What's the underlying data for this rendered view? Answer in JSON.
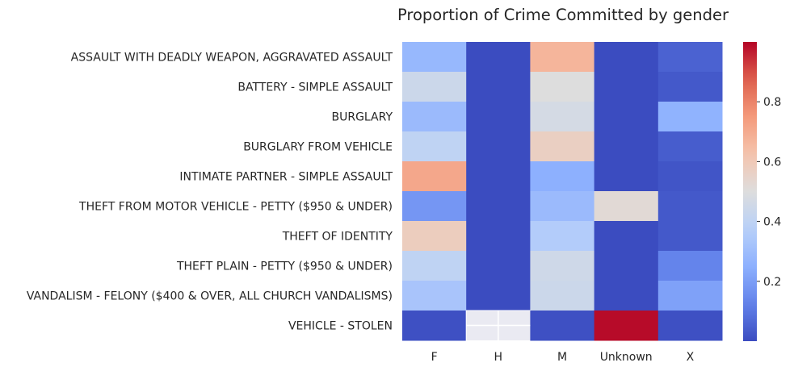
{
  "chart_data": {
    "type": "heatmap",
    "title": "Proportion of Crime Committed by gender",
    "xlabel": "",
    "ylabel": "",
    "x_categories": [
      "F",
      "H",
      "M",
      "Unknown",
      "X"
    ],
    "y_categories": [
      "ASSAULT WITH DEADLY WEAPON, AGGRAVATED ASSAULT",
      "BATTERY - SIMPLE ASSAULT",
      "BURGLARY",
      "BURGLARY FROM VEHICLE",
      "INTIMATE PARTNER - SIMPLE ASSAULT",
      "THEFT FROM MOTOR VEHICLE - PETTY ($950 & UNDER)",
      "THEFT OF IDENTITY",
      "THEFT PLAIN - PETTY ($950 & UNDER)",
      "VANDALISM - FELONY ($400 & OVER, ALL CHURCH VANDALISMS)",
      "VEHICLE - STOLEN"
    ],
    "values": [
      [
        0.28,
        0.0,
        0.67,
        0.0,
        0.05
      ],
      [
        0.44,
        0.0,
        0.5,
        0.0,
        0.03
      ],
      [
        0.29,
        0.0,
        0.47,
        0.0,
        0.26
      ],
      [
        0.4,
        0.0,
        0.57,
        0.0,
        0.04
      ],
      [
        0.71,
        0.0,
        0.25,
        0.0,
        0.02
      ],
      [
        0.18,
        0.0,
        0.29,
        0.52,
        0.03
      ],
      [
        0.58,
        0.0,
        0.36,
        0.0,
        0.03
      ],
      [
        0.4,
        0.0,
        0.45,
        0.0,
        0.13
      ],
      [
        0.33,
        0.0,
        0.44,
        0.0,
        0.21
      ],
      [
        0.01,
        null,
        0.01,
        0.99,
        0.01
      ]
    ],
    "colormap": "coolwarm",
    "vmin": 0.0,
    "vmax": 1.0,
    "colorbar_ticks": [
      "0.2",
      "0.4",
      "0.6",
      "0.8"
    ],
    "colorbar_tick_values": [
      0.2,
      0.4,
      0.6,
      0.8
    ],
    "missing_color": "#eaeaf2",
    "grid": false,
    "colorbar_placement": "right"
  }
}
